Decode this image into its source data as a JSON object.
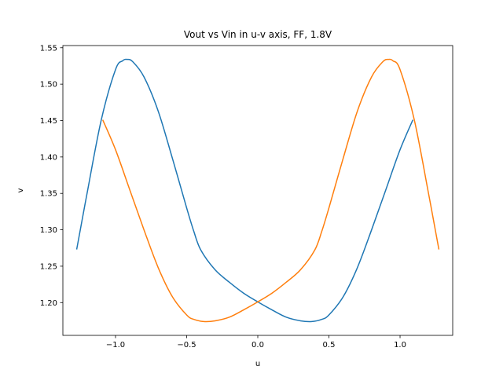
{
  "chart_data": {
    "type": "line",
    "title": "Vout vs Vin in u-v axis, FF, 1.8V",
    "xlabel": "u",
    "ylabel": "v",
    "xlim": [
      -1.37,
      1.37
    ],
    "ylim": [
      1.155,
      1.553
    ],
    "xticks": [
      -1.0,
      -0.5,
      0.0,
      0.5,
      1.0
    ],
    "xtick_labels": [
      "−1.0",
      "−0.5",
      "0.0",
      "0.5",
      "1.0"
    ],
    "yticks": [
      1.2,
      1.25,
      1.3,
      1.35,
      1.4,
      1.45,
      1.5,
      1.55
    ],
    "ytick_labels": [
      "1.20",
      "1.25",
      "1.30",
      "1.35",
      "1.40",
      "1.45",
      "1.50",
      "1.55"
    ],
    "grid": false,
    "series": [
      {
        "color": "#1f77b4",
        "x": [
          -1.273,
          -1.2,
          -1.1,
          -1.0,
          -0.95,
          -0.92,
          -0.88,
          -0.8,
          -0.7,
          -0.6,
          -0.5,
          -0.45,
          -0.4,
          -0.3,
          -0.2,
          -0.1,
          0.0,
          0.1,
          0.2,
          0.3,
          0.38,
          0.45,
          0.5,
          0.6,
          0.7,
          0.8,
          0.9,
          1.0,
          1.09
        ],
        "y": [
          1.273,
          1.35,
          1.451,
          1.52,
          1.532,
          1.534,
          1.531,
          1.51,
          1.463,
          1.398,
          1.33,
          1.298,
          1.272,
          1.245,
          1.228,
          1.213,
          1.201,
          1.19,
          1.18,
          1.175,
          1.174,
          1.177,
          1.183,
          1.208,
          1.248,
          1.3,
          1.355,
          1.41,
          1.451
        ]
      },
      {
        "color": "#ff7f0e",
        "x": [
          -1.09,
          -1.0,
          -0.9,
          -0.8,
          -0.7,
          -0.6,
          -0.5,
          -0.45,
          -0.38,
          -0.3,
          -0.2,
          -0.1,
          0.0,
          0.1,
          0.2,
          0.3,
          0.4,
          0.45,
          0.5,
          0.6,
          0.7,
          0.8,
          0.88,
          0.92,
          0.95,
          1.0,
          1.1,
          1.2,
          1.273
        ],
        "y": [
          1.451,
          1.41,
          1.355,
          1.3,
          1.248,
          1.208,
          1.183,
          1.177,
          1.174,
          1.175,
          1.18,
          1.19,
          1.201,
          1.213,
          1.228,
          1.245,
          1.272,
          1.298,
          1.33,
          1.398,
          1.463,
          1.51,
          1.531,
          1.534,
          1.532,
          1.52,
          1.451,
          1.35,
          1.273
        ]
      }
    ]
  }
}
